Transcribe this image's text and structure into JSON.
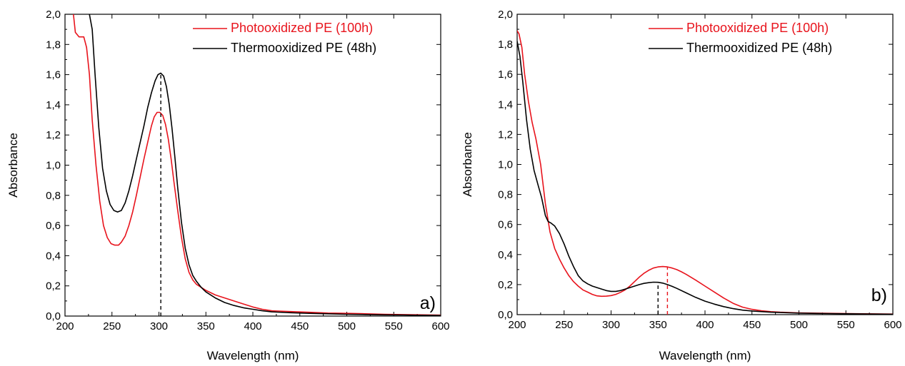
{
  "chart_data": [
    {
      "type": "line",
      "panel_label": "a)",
      "xlabel": "Wavelength (nm)",
      "ylabel": "Absorbance",
      "xlim": [
        200,
        600
      ],
      "ylim": [
        0.0,
        2.0
      ],
      "xticks": [
        "200",
        "250",
        "300",
        "350",
        "400",
        "450",
        "500",
        "550",
        "600"
      ],
      "yticks": [
        "0,0",
        "0,2",
        "0,4",
        "0,6",
        "0,8",
        "1,0",
        "1,2",
        "1,4",
        "1,6",
        "1,8",
        "2,0"
      ],
      "grid": false,
      "legend": "top-right",
      "series": [
        {
          "name": "Photooxidized PE (100h)",
          "color": "#e8131c",
          "x": [
            209,
            211,
            215,
            220,
            223,
            226,
            229,
            233,
            237,
            241,
            245,
            249,
            253,
            257,
            260,
            264,
            268,
            272,
            276,
            280,
            284,
            288,
            292,
            295,
            298,
            301,
            304,
            307,
            310,
            313,
            316,
            320,
            324,
            328,
            332,
            336,
            340,
            345,
            350,
            360,
            370,
            380,
            390,
            400,
            410,
            420,
            440,
            460,
            480,
            500,
            520,
            540,
            560,
            580,
            600
          ],
          "y": [
            2.0,
            1.88,
            1.85,
            1.85,
            1.78,
            1.6,
            1.3,
            1.0,
            0.76,
            0.6,
            0.52,
            0.48,
            0.47,
            0.47,
            0.49,
            0.53,
            0.6,
            0.69,
            0.8,
            0.92,
            1.04,
            1.15,
            1.26,
            1.32,
            1.35,
            1.35,
            1.33,
            1.27,
            1.17,
            1.04,
            0.89,
            0.7,
            0.52,
            0.38,
            0.29,
            0.24,
            0.21,
            0.19,
            0.17,
            0.14,
            0.12,
            0.1,
            0.08,
            0.06,
            0.045,
            0.035,
            0.03,
            0.025,
            0.02,
            0.018,
            0.015,
            0.012,
            0.01,
            0.008,
            0.006
          ]
        },
        {
          "name": "Thermooxidized PE (48h)",
          "color": "#000000",
          "x": [
            226,
            229,
            232,
            236,
            240,
            244,
            248,
            252,
            256,
            260,
            264,
            268,
            272,
            276,
            280,
            284,
            288,
            292,
            296,
            299,
            302,
            305,
            308,
            311,
            314,
            317,
            320,
            324,
            328,
            332,
            336,
            340,
            345,
            350,
            360,
            370,
            380,
            390,
            400,
            410,
            420,
            440,
            460,
            480,
            500,
            520,
            540,
            560,
            580,
            600
          ],
          "y": [
            2.0,
            1.9,
            1.6,
            1.25,
            0.98,
            0.83,
            0.74,
            0.7,
            0.69,
            0.7,
            0.75,
            0.83,
            0.93,
            1.04,
            1.15,
            1.26,
            1.38,
            1.48,
            1.56,
            1.6,
            1.61,
            1.59,
            1.52,
            1.4,
            1.24,
            1.05,
            0.85,
            0.62,
            0.45,
            0.34,
            0.27,
            0.23,
            0.19,
            0.16,
            0.12,
            0.09,
            0.07,
            0.055,
            0.045,
            0.035,
            0.028,
            0.022,
            0.018,
            0.015,
            0.012,
            0.01,
            0.008,
            0.007,
            0.005,
            0.004
          ]
        }
      ],
      "annotations": [
        {
          "kind": "dashed-vertical",
          "color": "#000000",
          "x": 302,
          "y_top": 1.61
        }
      ]
    },
    {
      "type": "line",
      "panel_label": "b)",
      "xlabel": "Wavelength (nm)",
      "ylabel": "Absorbance",
      "xlim": [
        200,
        600
      ],
      "ylim": [
        0.0,
        2.0
      ],
      "xticks": [
        "200",
        "250",
        "300",
        "350",
        "400",
        "450",
        "500",
        "550",
        "600"
      ],
      "yticks": [
        "0,0",
        "0,2",
        "0,4",
        "0,6",
        "0,8",
        "1,0",
        "1,2",
        "1,4",
        "1,6",
        "1,8",
        "2,0"
      ],
      "grid": false,
      "legend": "top-right",
      "series": [
        {
          "name": "Photooxidized PE (100h)",
          "color": "#e8131c",
          "x": [
            200,
            202,
            205,
            208,
            212,
            216,
            220,
            225,
            230,
            235,
            240,
            245,
            250,
            255,
            260,
            265,
            270,
            275,
            280,
            285,
            290,
            295,
            300,
            305,
            310,
            315,
            320,
            325,
            330,
            335,
            340,
            345,
            350,
            355,
            360,
            365,
            370,
            375,
            380,
            390,
            400,
            410,
            420,
            430,
            440,
            450,
            460,
            470,
            480,
            500,
            520,
            540,
            560,
            580,
            600
          ],
          "y": [
            1.89,
            1.87,
            1.78,
            1.6,
            1.42,
            1.28,
            1.17,
            1.0,
            0.74,
            0.55,
            0.44,
            0.37,
            0.31,
            0.26,
            0.22,
            0.19,
            0.165,
            0.15,
            0.135,
            0.125,
            0.122,
            0.123,
            0.127,
            0.135,
            0.148,
            0.165,
            0.19,
            0.22,
            0.25,
            0.275,
            0.295,
            0.31,
            0.318,
            0.32,
            0.318,
            0.31,
            0.3,
            0.285,
            0.268,
            0.23,
            0.19,
            0.15,
            0.11,
            0.075,
            0.05,
            0.035,
            0.026,
            0.02,
            0.016,
            0.012,
            0.01,
            0.008,
            0.006,
            0.005,
            0.004
          ]
        },
        {
          "name": "Thermooxidized PE (48h)",
          "color": "#000000",
          "x": [
            200,
            203,
            206,
            210,
            214,
            218,
            222,
            226,
            230,
            233,
            236,
            240,
            245,
            250,
            255,
            260,
            265,
            270,
            275,
            280,
            285,
            290,
            295,
            300,
            305,
            310,
            315,
            320,
            325,
            330,
            335,
            340,
            345,
            350,
            355,
            360,
            365,
            370,
            380,
            390,
            400,
            410,
            420,
            430,
            440,
            450,
            470,
            500,
            530,
            560,
            600
          ],
          "y": [
            1.82,
            1.72,
            1.55,
            1.3,
            1.1,
            0.96,
            0.87,
            0.78,
            0.66,
            0.62,
            0.61,
            0.59,
            0.54,
            0.47,
            0.39,
            0.32,
            0.26,
            0.225,
            0.205,
            0.19,
            0.18,
            0.17,
            0.16,
            0.155,
            0.155,
            0.16,
            0.17,
            0.18,
            0.19,
            0.2,
            0.208,
            0.213,
            0.216,
            0.215,
            0.21,
            0.2,
            0.188,
            0.175,
            0.145,
            0.115,
            0.09,
            0.07,
            0.053,
            0.04,
            0.03,
            0.024,
            0.016,
            0.01,
            0.007,
            0.005,
            0.003
          ]
        }
      ],
      "annotations": [
        {
          "kind": "dashed-vertical",
          "color": "#000000",
          "x": 350,
          "y_top": 0.216
        },
        {
          "kind": "dashed-vertical",
          "color": "#e8131c",
          "x": 360,
          "y_top": 0.318
        }
      ]
    }
  ]
}
